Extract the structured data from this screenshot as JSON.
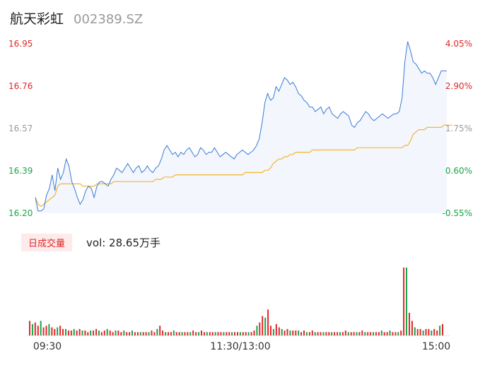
{
  "header": {
    "name": "航天彩虹",
    "code": "002389.SZ"
  },
  "volume": {
    "badge": "日成交量",
    "label": "vol: 28.65万手"
  },
  "colors": {
    "price_line": "#3a7bd5",
    "avg_line": "#f5b530",
    "up": "#e0272a",
    "down": "#1aa34a",
    "flat": "#999999"
  },
  "chart_data": {
    "type": "line",
    "title": "",
    "y_left_ticks": [
      "16.95",
      "16.76",
      "16.57",
      "16.39",
      "16.20"
    ],
    "y_right_ticks": [
      "4.05%",
      "2.90%",
      "1.75%",
      "0.60%",
      "-0.55%"
    ],
    "x_ticks": [
      "09:30",
      "11:30/13:00",
      "15:00"
    ],
    "ylim": [
      16.2,
      16.95
    ],
    "series": [
      {
        "values": [
          16.27,
          16.21,
          16.21,
          16.22,
          16.28,
          16.31,
          16.37,
          16.3,
          16.4,
          16.35,
          16.38,
          16.44,
          16.41,
          16.34,
          16.31,
          16.27,
          16.24,
          16.26,
          16.3,
          16.32,
          16.31,
          16.27,
          16.32,
          16.34,
          16.34,
          16.33,
          16.32,
          16.35,
          16.37,
          16.4,
          16.39,
          16.38,
          16.4,
          16.42,
          16.4,
          16.38,
          16.4,
          16.41,
          16.38,
          16.39,
          16.41,
          16.39,
          16.38,
          16.4,
          16.41,
          16.44,
          16.48,
          16.5,
          16.48,
          16.46,
          16.47,
          16.45,
          16.47,
          16.46,
          16.48,
          16.49,
          16.47,
          16.45,
          16.46,
          16.49,
          16.48,
          16.46,
          16.47,
          16.47,
          16.49,
          16.47,
          16.45,
          16.46,
          16.47,
          16.46,
          16.45,
          16.44,
          16.46,
          16.47,
          16.48,
          16.47,
          16.46,
          16.47,
          16.48,
          16.5,
          16.53,
          16.6,
          16.69,
          16.73,
          16.7,
          16.71,
          16.76,
          16.74,
          16.77,
          16.8,
          16.79,
          16.77,
          16.78,
          16.76,
          16.73,
          16.72,
          16.7,
          16.69,
          16.67,
          16.67,
          16.65,
          16.66,
          16.67,
          16.64,
          16.66,
          16.67,
          16.64,
          16.63,
          16.62,
          16.64,
          16.65,
          16.64,
          16.63,
          16.59,
          16.58,
          16.6,
          16.61,
          16.63,
          16.65,
          16.64,
          16.62,
          16.61,
          16.62,
          16.63,
          16.64,
          16.63,
          16.62,
          16.63,
          16.64,
          16.64,
          16.65,
          16.71,
          16.87,
          16.96,
          16.92,
          16.87,
          16.86,
          16.84,
          16.82,
          16.83,
          16.82,
          16.82,
          16.8,
          16.77,
          16.8,
          16.83,
          16.83,
          16.83
        ]
      },
      {
        "values": [
          16.27,
          16.24,
          16.23,
          16.24,
          16.25,
          16.26,
          16.27,
          16.28,
          16.32,
          16.33,
          16.33,
          16.33,
          16.33,
          16.33,
          16.33,
          16.33,
          16.33,
          16.32,
          16.32,
          16.32,
          16.32,
          16.32,
          16.33,
          16.33,
          16.33,
          16.33,
          16.33,
          16.33,
          16.34,
          16.34,
          16.34,
          16.34,
          16.34,
          16.34,
          16.34,
          16.34,
          16.34,
          16.34,
          16.34,
          16.34,
          16.34,
          16.34,
          16.34,
          16.35,
          16.35,
          16.35,
          16.36,
          16.36,
          16.36,
          16.36,
          16.37,
          16.37,
          16.37,
          16.37,
          16.37,
          16.37,
          16.37,
          16.37,
          16.37,
          16.37,
          16.37,
          16.37,
          16.37,
          16.37,
          16.37,
          16.37,
          16.37,
          16.37,
          16.37,
          16.37,
          16.37,
          16.37,
          16.37,
          16.37,
          16.37,
          16.38,
          16.38,
          16.38,
          16.38,
          16.38,
          16.38,
          16.38,
          16.39,
          16.39,
          16.4,
          16.42,
          16.43,
          16.44,
          16.44,
          16.45,
          16.45,
          16.46,
          16.46,
          16.47,
          16.47,
          16.47,
          16.47,
          16.47,
          16.47,
          16.48,
          16.48,
          16.48,
          16.48,
          16.48,
          16.48,
          16.48,
          16.48,
          16.48,
          16.48,
          16.48,
          16.48,
          16.48,
          16.48,
          16.48,
          16.48,
          16.49,
          16.49,
          16.49,
          16.49,
          16.49,
          16.49,
          16.49,
          16.49,
          16.49,
          16.49,
          16.49,
          16.49,
          16.49,
          16.49,
          16.49,
          16.49,
          16.49,
          16.5,
          16.5,
          16.52,
          16.55,
          16.56,
          16.57,
          16.57,
          16.57,
          16.58,
          16.58,
          16.58,
          16.58,
          16.58,
          16.58,
          16.59,
          16.59,
          16.59,
          16.59
        ]
      }
    ],
    "volume_values": [
      9,
      7,
      8,
      6,
      9,
      5,
      6,
      7,
      5,
      4,
      5,
      6,
      4,
      4,
      3,
      3,
      4,
      3,
      4,
      3,
      3,
      2,
      3,
      3,
      4,
      3,
      2,
      3,
      4,
      3,
      2,
      3,
      3,
      2,
      3,
      2,
      2,
      3,
      2,
      2,
      2,
      2,
      2,
      2,
      3,
      2,
      4,
      6,
      3,
      2,
      2,
      2,
      3,
      2,
      2,
      2,
      2,
      2,
      2,
      3,
      2,
      2,
      3,
      2,
      2,
      2,
      2,
      2,
      2,
      2,
      2,
      2,
      2,
      2,
      2,
      2,
      2,
      2,
      2,
      2,
      2,
      3,
      6,
      8,
      12,
      11,
      16,
      6,
      4,
      7,
      5,
      4,
      3,
      4,
      3,
      3,
      3,
      3,
      2,
      3,
      2,
      2,
      3,
      2,
      2,
      2,
      2,
      2,
      2,
      2,
      2,
      2,
      2,
      2,
      3,
      2,
      2,
      2,
      2,
      2,
      3,
      2,
      2,
      2,
      2,
      2,
      2,
      3,
      2,
      2,
      3,
      2,
      2,
      2,
      3,
      42,
      42,
      14,
      9,
      5,
      4,
      4,
      3,
      4,
      4,
      3,
      4,
      3,
      6,
      7
    ]
  }
}
